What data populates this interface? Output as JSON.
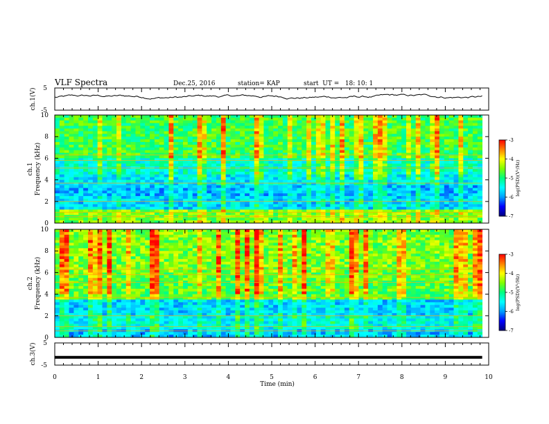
{
  "header": {
    "title": "VLF Spectra",
    "date": "Dec.25, 2016",
    "station": "station= KAP",
    "start": "start  UT =   18: 10: 1"
  },
  "chart_data": [
    {
      "type": "line",
      "id": "ch1_waveform",
      "ylabel": "ch.1(V)",
      "ylim": [
        -5,
        5
      ],
      "yticks": [
        "5",
        "-5"
      ],
      "xlim": [
        0,
        10
      ],
      "description_values": "noisy waveform, roughly 0 to +2 V"
    },
    {
      "type": "heatmap",
      "id": "ch1_spectrogram",
      "ylabel": "ch.1\nFrequency (kHz)",
      "ylim": [
        0,
        10
      ],
      "yticks": [
        "0",
        "2",
        "4",
        "6",
        "8",
        "10"
      ],
      "xlim": [
        0,
        10.0
      ],
      "colorbar": {
        "label": "log(PSD)(V²/Hz)",
        "min": -7,
        "max": -3,
        "ticks": [
          "-3",
          "-4",
          "-5",
          "-6",
          "-7"
        ]
      }
    },
    {
      "type": "heatmap",
      "id": "ch2_spectrogram",
      "ylabel": "ch.2\nFrequency (kHz)",
      "ylim": [
        0,
        10
      ],
      "yticks": [
        "0",
        "2",
        "4",
        "6",
        "8",
        "10"
      ],
      "xlim": [
        0,
        10.0
      ],
      "colorbar": {
        "label": "log(PSD)(V²/Hz)",
        "min": -7,
        "max": -3,
        "ticks": [
          "-3",
          "-4",
          "-5",
          "-6",
          "-7"
        ]
      }
    },
    {
      "type": "line",
      "id": "ch3_waveform",
      "ylabel": "ch.3(V)",
      "ylim": [
        -5,
        5
      ],
      "yticks": [
        "5",
        "-5"
      ],
      "xlim": [
        0,
        10
      ],
      "values_constant": -1.5
    }
  ],
  "xaxis": {
    "label": "Time (min)",
    "ticks": [
      "0",
      "1",
      "2",
      "3",
      "4",
      "5",
      "6",
      "7",
      "8",
      "9",
      "10"
    ]
  },
  "colors": {
    "cmap": [
      "#000080",
      "#0000ff",
      "#00a0ff",
      "#00ffff",
      "#00ff80",
      "#80ff00",
      "#ffff00",
      "#ff8000",
      "#ff0000"
    ]
  }
}
